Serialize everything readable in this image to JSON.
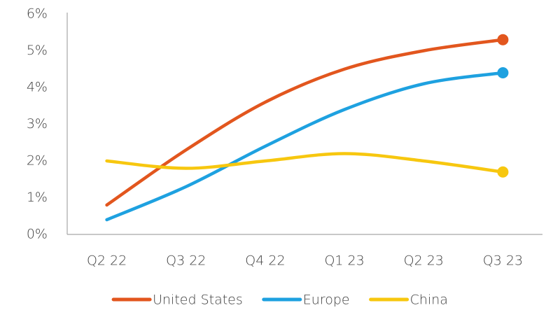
{
  "chart_data": {
    "type": "line",
    "categories": [
      "Q2 22",
      "Q3 22",
      "Q4 22",
      "Q1 23",
      "Q2 23",
      "Q3 23"
    ],
    "series": [
      {
        "name": "United States",
        "color": "#e2561e",
        "values": [
          0.8,
          2.3,
          3.6,
          4.5,
          5.0,
          5.3
        ]
      },
      {
        "name": "Europe",
        "color": "#1ea1e0",
        "values": [
          0.4,
          1.3,
          2.4,
          3.4,
          4.1,
          4.4
        ]
      },
      {
        "name": "China",
        "color": "#f7c70f",
        "values": [
          2.0,
          1.8,
          2.0,
          2.2,
          2.0,
          1.7
        ]
      }
    ],
    "ylim": [
      0,
      6
    ],
    "yticks": [
      {
        "value": 0,
        "label": "0%"
      },
      {
        "value": 1,
        "label": "1%"
      },
      {
        "value": 2,
        "label": "2%"
      },
      {
        "value": 3,
        "label": "3%"
      },
      {
        "value": 4,
        "label": "4%"
      },
      {
        "value": 5,
        "label": "5%"
      },
      {
        "value": 6,
        "label": "6%"
      }
    ],
    "smooth": true,
    "end_markers": true,
    "grid": false,
    "legend": "bottom"
  }
}
